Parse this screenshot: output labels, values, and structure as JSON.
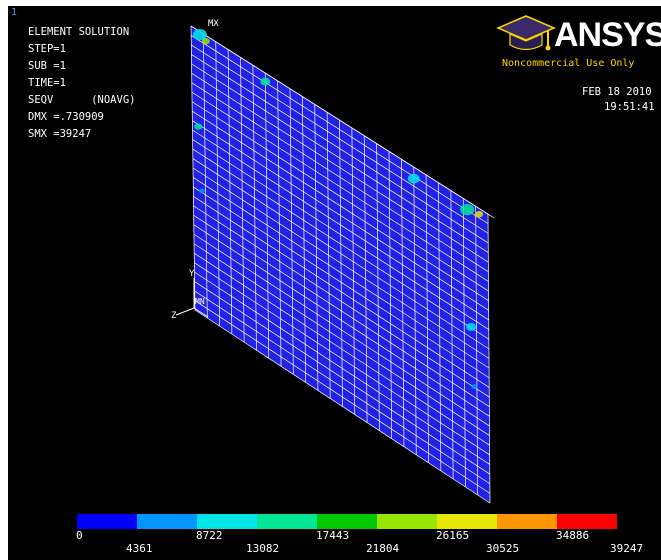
{
  "window_number": "1",
  "info": {
    "title": "ELEMENT SOLUTION",
    "step": "STEP=1",
    "sub": "SUB =1",
    "time": "TIME=1",
    "seqv": "SEQV      (NOAVG)",
    "dmx": "DMX =.730909",
    "smx": "SMX =39247"
  },
  "logo": {
    "brand": "ANSYS",
    "notice": "Noncommercial Use Only",
    "icon": "graduation-cap-icon"
  },
  "date": "FEB 18 2010",
  "clock": "19:51:41",
  "markers": {
    "mx": "MX",
    "mn": "MN",
    "y_axis": "Y",
    "z_axis": "Z"
  },
  "legend": {
    "colors": [
      "#0000ff",
      "#0096ff",
      "#00e6e6",
      "#00e696",
      "#00c800",
      "#96e600",
      "#e6e600",
      "#ff9600",
      "#ff0000"
    ],
    "labels_top": [
      "0",
      "8722",
      "17443",
      "26165",
      "34886"
    ],
    "labels_bottom": [
      "4361",
      "13082",
      "21804",
      "30525",
      "39247"
    ]
  },
  "colors": {
    "background": "#000000",
    "mesh_fill": "#2222e6",
    "mesh_lines": "#ffffff",
    "accent_yellow": "#ffd400"
  }
}
